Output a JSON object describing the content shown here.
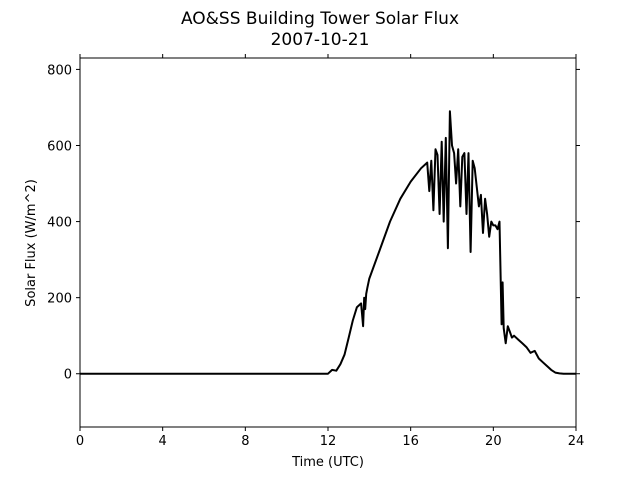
{
  "chart_data": {
    "type": "line",
    "title": "AO&SS Building Tower Solar Flux",
    "subtitle": "2007-10-21",
    "xlabel": "Time (UTC)",
    "ylabel": "Solar Flux (W/m^2)",
    "xlim": [
      0,
      24
    ],
    "ylim": [
      -140,
      830
    ],
    "xticks": [
      0,
      4,
      8,
      12,
      16,
      20,
      24
    ],
    "yticks": [
      0,
      200,
      400,
      600,
      800
    ],
    "grid": false,
    "line_color": "#000000",
    "series": [
      {
        "x": [
          0,
          12.0,
          12.2,
          12.4,
          12.6,
          12.8,
          13.0,
          13.2,
          13.4,
          13.6,
          13.7,
          13.75,
          13.8,
          13.85,
          13.9,
          14.0,
          14.5,
          15.0,
          15.5,
          16.0,
          16.5,
          16.8,
          16.9,
          17.0,
          17.1,
          17.2,
          17.3,
          17.4,
          17.5,
          17.6,
          17.7,
          17.8,
          17.9,
          18.0,
          18.1,
          18.2,
          18.3,
          18.4,
          18.5,
          18.6,
          18.7,
          18.8,
          18.9,
          19.0,
          19.1,
          19.2,
          19.3,
          19.4,
          19.5,
          19.6,
          19.7,
          19.8,
          19.9,
          20.0,
          20.1,
          20.2,
          20.3,
          20.4,
          20.45,
          20.5,
          20.55,
          20.6,
          20.7,
          20.8,
          20.9,
          21.0,
          21.2,
          21.4,
          21.6,
          21.8,
          22.0,
          22.2,
          22.4,
          22.6,
          22.8,
          23.0,
          23.2,
          23.4,
          23.6,
          24.0
        ],
        "y": [
          0,
          0,
          10,
          8,
          25,
          50,
          95,
          140,
          175,
          185,
          125,
          200,
          170,
          210,
          225,
          250,
          325,
          400,
          460,
          505,
          540,
          555,
          480,
          560,
          430,
          590,
          575,
          420,
          610,
          400,
          620,
          330,
          690,
          600,
          580,
          500,
          590,
          440,
          570,
          580,
          420,
          580,
          320,
          560,
          540,
          490,
          440,
          470,
          370,
          460,
          420,
          360,
          400,
          390,
          390,
          380,
          400,
          130,
          240,
          120,
          100,
          80,
          125,
          110,
          95,
          100,
          90,
          80,
          70,
          55,
          60,
          40,
          30,
          20,
          10,
          3,
          1,
          0,
          0,
          0
        ]
      }
    ]
  }
}
